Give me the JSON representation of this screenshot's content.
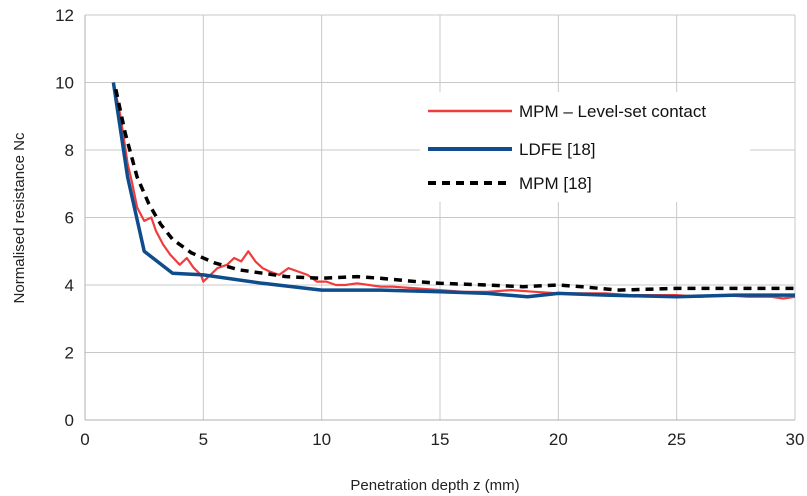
{
  "chart_data": {
    "type": "line",
    "xlabel": "Penetration depth z (mm)",
    "ylabel": "Normalised resistance Nc",
    "xlim": [
      0,
      30
    ],
    "ylim": [
      0,
      12
    ],
    "x_ticks": [
      "0",
      "5",
      "10",
      "15",
      "20",
      "25",
      "30"
    ],
    "y_ticks": [
      "0",
      "2",
      "4",
      "6",
      "8",
      "10",
      "12"
    ],
    "grid": true,
    "legend_position": "top-right",
    "series": [
      {
        "name": "MPM – Level-set contact",
        "color": "#f03c3c",
        "style": "solid",
        "x": [
          1.2,
          1.5,
          1.8,
          2.0,
          2.2,
          2.5,
          2.8,
          3.0,
          3.3,
          3.6,
          4.0,
          4.3,
          4.6,
          4.9,
          5.0,
          5.3,
          5.6,
          6.0,
          6.3,
          6.6,
          6.9,
          7.2,
          7.5,
          7.8,
          8.2,
          8.6,
          9.0,
          9.4,
          9.8,
          10.2,
          10.6,
          11.0,
          11.5,
          12.0,
          12.5,
          13.0,
          14.0,
          15.0,
          16.0,
          17.0,
          18.0,
          19.0,
          20.0,
          21.0,
          22.0,
          23.0,
          24.0,
          25.0,
          26.0,
          27.0,
          28.0,
          29.0,
          29.5,
          30.0
        ],
        "y": [
          10.0,
          9.0,
          7.6,
          7.0,
          6.3,
          5.9,
          6.0,
          5.6,
          5.2,
          4.9,
          4.6,
          4.8,
          4.5,
          4.3,
          4.1,
          4.3,
          4.5,
          4.6,
          4.8,
          4.7,
          5.0,
          4.7,
          4.5,
          4.4,
          4.3,
          4.5,
          4.4,
          4.3,
          4.1,
          4.1,
          4.0,
          4.0,
          4.05,
          4.0,
          3.95,
          3.95,
          3.9,
          3.85,
          3.8,
          3.8,
          3.85,
          3.8,
          3.75,
          3.75,
          3.75,
          3.7,
          3.7,
          3.7,
          3.65,
          3.7,
          3.65,
          3.65,
          3.6,
          3.65
        ]
      },
      {
        "name": "LDFE [18]",
        "color": "#0f4c8c",
        "style": "solid",
        "x": [
          1.2,
          1.8,
          2.5,
          3.7,
          5.0,
          7.5,
          10.0,
          12.5,
          15.0,
          17.0,
          18.7,
          20.0,
          22.0,
          25.0,
          27.5,
          30.0
        ],
        "y": [
          10.0,
          7.2,
          5.0,
          4.35,
          4.3,
          4.05,
          3.85,
          3.85,
          3.8,
          3.75,
          3.65,
          3.75,
          3.7,
          3.65,
          3.7,
          3.7
        ]
      },
      {
        "name": "MPM [18]",
        "color": "#000000",
        "style": "dashed",
        "x": [
          1.3,
          1.7,
          2.2,
          2.7,
          3.2,
          3.7,
          4.5,
          5.5,
          6.5,
          7.5,
          8.5,
          10.0,
          11.5,
          12.5,
          14.0,
          15.0,
          17.0,
          18.5,
          20.0,
          21.0,
          22.5,
          25.0,
          27.5,
          30.0
        ],
        "y": [
          9.8,
          8.5,
          7.2,
          6.4,
          5.8,
          5.35,
          4.95,
          4.65,
          4.45,
          4.35,
          4.25,
          4.2,
          4.25,
          4.2,
          4.1,
          4.05,
          4.0,
          3.95,
          4.0,
          3.95,
          3.85,
          3.9,
          3.9,
          3.9
        ]
      }
    ]
  }
}
